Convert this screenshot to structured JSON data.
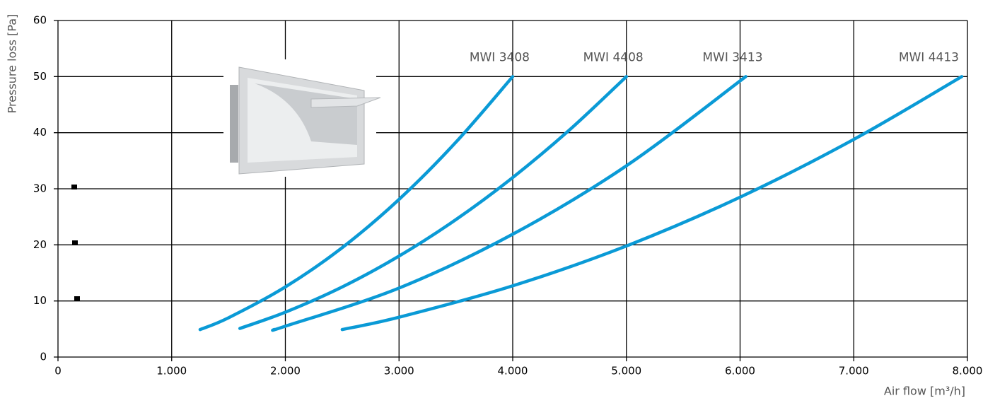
{
  "chart_data": {
    "type": "line",
    "xlabel": "Air flow [m³/h]",
    "ylabel": "Pressure loss [Pa]",
    "xlim": [
      0,
      8000
    ],
    "xticks": [
      0,
      {
        "value": 1000,
        "label": "1.000"
      },
      {
        "value": 2000,
        "label": "2.000"
      },
      {
        "value": 3000,
        "label": "3.000"
      },
      {
        "value": 4000,
        "label": "4.000"
      },
      {
        "value": 5000,
        "label": "5.000"
      },
      {
        "value": 6000,
        "label": "6.000"
      },
      {
        "value": 7000,
        "label": "7.000"
      },
      {
        "value": 8000,
        "label": "8.000"
      }
    ],
    "ylim": [
      0,
      60
    ],
    "yticks": [
      0,
      10,
      20,
      30,
      40,
      50,
      60
    ],
    "grid": true,
    "series": [
      {
        "name": "MWI 3408",
        "color": "#0a9ad6",
        "x": [
          1250,
          1500,
          2000,
          2500,
          3000,
          3500,
          4000
        ],
        "values": [
          4.9,
          7.0,
          12.5,
          19.5,
          28.1,
          38.3,
          50
        ]
      },
      {
        "name": "MWI 4408",
        "color": "#0a9ad6",
        "x": [
          1600,
          2000,
          2500,
          3000,
          3500,
          4000,
          4500,
          5000
        ],
        "values": [
          5.1,
          8.0,
          12.5,
          18.0,
          24.5,
          32.0,
          40.5,
          50
        ]
      },
      {
        "name": "MWI 3413",
        "color": "#0a9ad6",
        "x": [
          1900,
          2000,
          3000,
          4000,
          5000,
          6050
        ],
        "values": [
          4.9,
          5.5,
          12.3,
          21.9,
          34.1,
          50
        ]
      },
      {
        "name": "MWI 4413",
        "color": "#0a9ad6",
        "x": [
          2500,
          3000,
          4000,
          5000,
          6000,
          7000,
          7950
        ],
        "values": [
          4.9,
          7.1,
          12.7,
          19.8,
          28.5,
          38.8,
          50
        ]
      }
    ]
  }
}
